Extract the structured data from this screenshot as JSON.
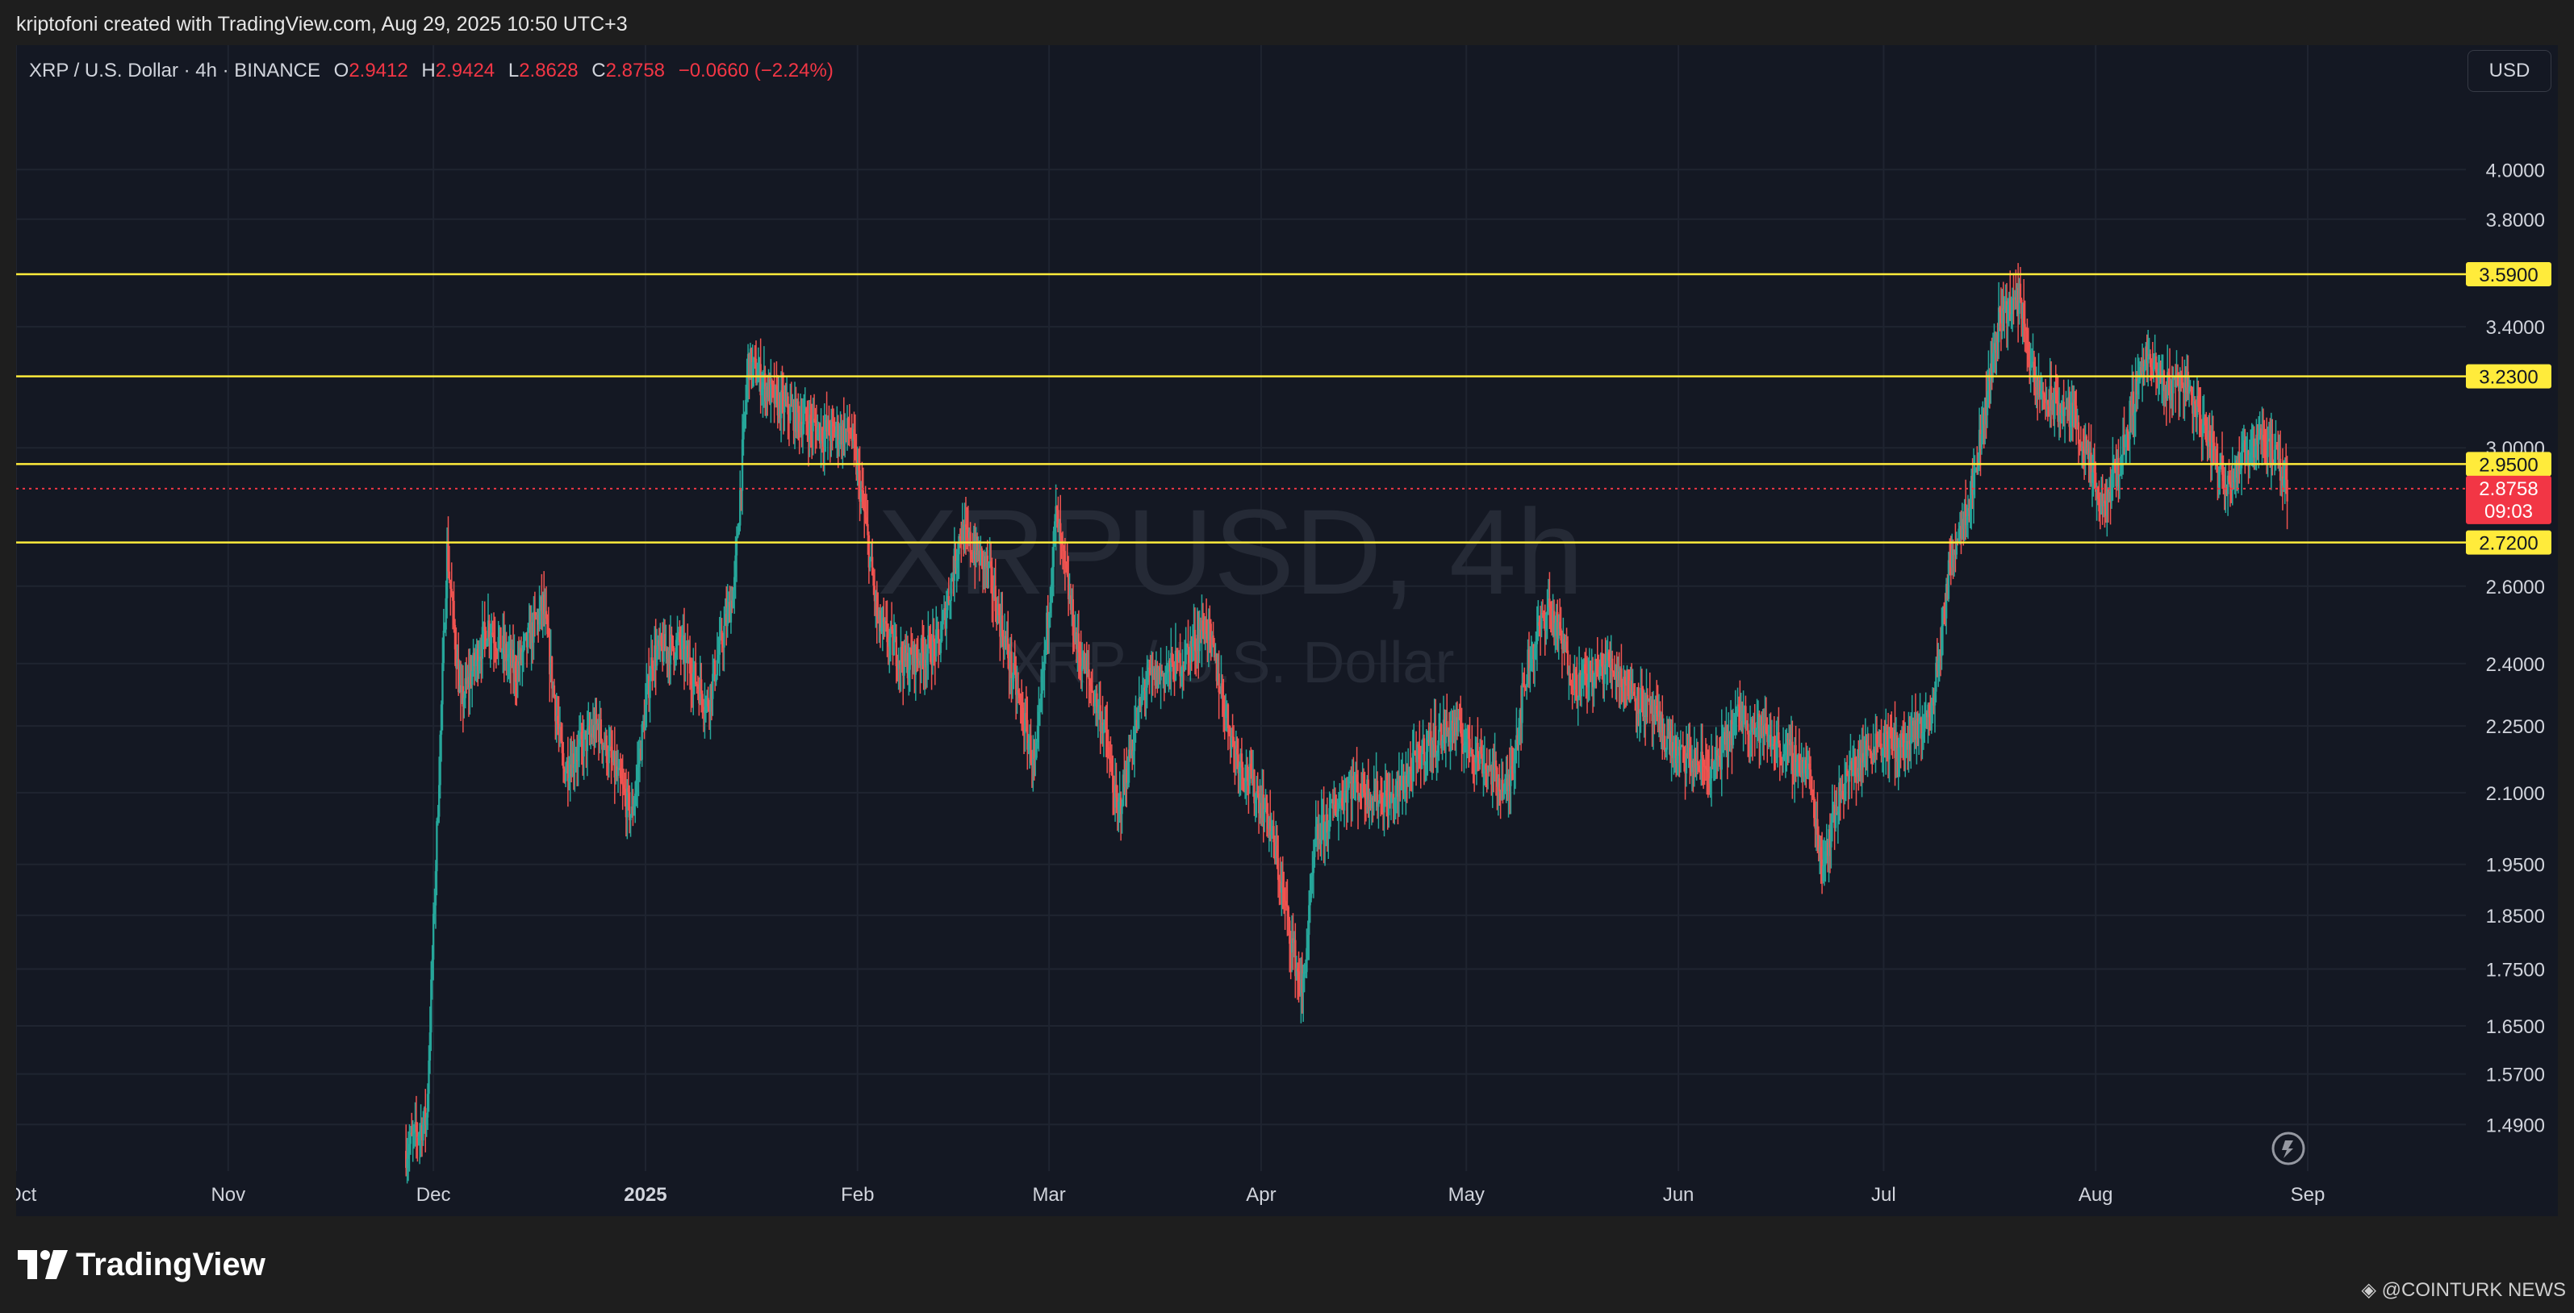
{
  "header": {
    "caption": "kriptofoni created with TradingView.com, Aug 29, 2025 10:50 UTC+3"
  },
  "legend": {
    "symbol": "XRP / U.S. Dollar · 4h · BINANCE",
    "open_label": "O",
    "open": "2.9412",
    "high_label": "H",
    "high": "2.9424",
    "low_label": "L",
    "low": "2.8628",
    "close_label": "C",
    "close": "2.8758",
    "change": "−0.0660 (−2.24%)"
  },
  "currency_button": "USD",
  "watermark": {
    "symbol": "XRPUSD, 4h",
    "name": "XRP / U.S. Dollar"
  },
  "footer": {
    "logo_text": "TradingView",
    "credit": "@COINTURK NEWS"
  },
  "colors": {
    "background": "#141823",
    "up": "#26a69a",
    "down": "#ef5350",
    "level_line": "#ffeb3b",
    "price_badge": "#f23645"
  },
  "chart_data": {
    "type": "candlestick",
    "symbol": "XRPUSD",
    "interval": "4h",
    "exchange": "BINANCE",
    "scale": "log",
    "ylim": [
      1.42,
      4.4
    ],
    "grid": true,
    "price_ticks": [
      "4.0000",
      "3.8000",
      "3.4000",
      "3.0000",
      "2.6000",
      "2.4000",
      "2.2500",
      "2.1000",
      "1.9500",
      "1.8500",
      "1.7500",
      "1.6500",
      "1.5700",
      "1.4900"
    ],
    "time_ticks": [
      {
        "label": "Oct",
        "date": "2024-10-01",
        "bold": false
      },
      {
        "label": "Nov",
        "date": "2024-11-01",
        "bold": false
      },
      {
        "label": "Dec",
        "date": "2024-12-01",
        "bold": false
      },
      {
        "label": "2025",
        "date": "2025-01-01",
        "bold": true
      },
      {
        "label": "Feb",
        "date": "2025-02-01",
        "bold": false
      },
      {
        "label": "Mar",
        "date": "2025-03-01",
        "bold": false
      },
      {
        "label": "Apr",
        "date": "2025-04-01",
        "bold": false
      },
      {
        "label": "May",
        "date": "2025-05-01",
        "bold": false
      },
      {
        "label": "Jun",
        "date": "2025-06-01",
        "bold": false
      },
      {
        "label": "Jul",
        "date": "2025-07-01",
        "bold": false
      },
      {
        "label": "Aug",
        "date": "2025-08-01",
        "bold": false
      },
      {
        "label": "Sep",
        "date": "2025-09-01",
        "bold": false
      }
    ],
    "horizontal_levels": [
      {
        "value": 3.59,
        "label": "3.5900"
      },
      {
        "value": 3.23,
        "label": "3.2300"
      },
      {
        "value": 2.95,
        "label": "2.9500"
      },
      {
        "value": 2.72,
        "label": "2.7200"
      }
    ],
    "last_price": {
      "value": 2.8758,
      "label": "2.8758",
      "countdown": "09:03"
    },
    "trend_points": [
      {
        "date": "2024-11-27",
        "price": 1.45
      },
      {
        "date": "2024-11-30",
        "price": 1.5
      },
      {
        "date": "2024-12-03",
        "price": 2.7
      },
      {
        "date": "2024-12-05",
        "price": 2.3
      },
      {
        "date": "2024-12-09",
        "price": 2.5
      },
      {
        "date": "2024-12-13",
        "price": 2.38
      },
      {
        "date": "2024-12-17",
        "price": 2.55
      },
      {
        "date": "2024-12-20",
        "price": 2.15
      },
      {
        "date": "2024-12-25",
        "price": 2.25
      },
      {
        "date": "2024-12-30",
        "price": 2.05
      },
      {
        "date": "2025-01-02",
        "price": 2.42
      },
      {
        "date": "2025-01-06",
        "price": 2.45
      },
      {
        "date": "2025-01-10",
        "price": 2.3
      },
      {
        "date": "2025-01-14",
        "price": 2.6
      },
      {
        "date": "2025-01-16",
        "price": 3.28
      },
      {
        "date": "2025-01-20",
        "price": 3.15
      },
      {
        "date": "2025-01-23",
        "price": 3.1
      },
      {
        "date": "2025-01-27",
        "price": 3.05
      },
      {
        "date": "2025-01-31",
        "price": 3.05
      },
      {
        "date": "2025-02-02",
        "price": 2.8
      },
      {
        "date": "2025-02-04",
        "price": 2.5
      },
      {
        "date": "2025-02-08",
        "price": 2.4
      },
      {
        "date": "2025-02-13",
        "price": 2.45
      },
      {
        "date": "2025-02-16",
        "price": 2.75
      },
      {
        "date": "2025-02-20",
        "price": 2.65
      },
      {
        "date": "2025-02-24",
        "price": 2.35
      },
      {
        "date": "2025-02-27",
        "price": 2.15
      },
      {
        "date": "2025-03-02",
        "price": 2.8
      },
      {
        "date": "2025-03-05",
        "price": 2.45
      },
      {
        "date": "2025-03-09",
        "price": 2.25
      },
      {
        "date": "2025-03-11",
        "price": 2.05
      },
      {
        "date": "2025-03-15",
        "price": 2.35
      },
      {
        "date": "2025-03-20",
        "price": 2.4
      },
      {
        "date": "2025-03-24",
        "price": 2.5
      },
      {
        "date": "2025-03-28",
        "price": 2.2
      },
      {
        "date": "2025-04-02",
        "price": 2.05
      },
      {
        "date": "2025-04-07",
        "price": 1.7
      },
      {
        "date": "2025-04-09",
        "price": 2.0
      },
      {
        "date": "2025-04-14",
        "price": 2.12
      },
      {
        "date": "2025-04-20",
        "price": 2.08
      },
      {
        "date": "2025-04-25",
        "price": 2.2
      },
      {
        "date": "2025-04-29",
        "price": 2.25
      },
      {
        "date": "2025-05-02",
        "price": 2.2
      },
      {
        "date": "2025-05-07",
        "price": 2.1
      },
      {
        "date": "2025-05-10",
        "price": 2.4
      },
      {
        "date": "2025-05-13",
        "price": 2.55
      },
      {
        "date": "2025-05-17",
        "price": 2.35
      },
      {
        "date": "2025-05-22",
        "price": 2.4
      },
      {
        "date": "2025-05-27",
        "price": 2.3
      },
      {
        "date": "2025-06-01",
        "price": 2.18
      },
      {
        "date": "2025-06-06",
        "price": 2.15
      },
      {
        "date": "2025-06-10",
        "price": 2.28
      },
      {
        "date": "2025-06-16",
        "price": 2.2
      },
      {
        "date": "2025-06-20",
        "price": 2.15
      },
      {
        "date": "2025-06-22",
        "price": 1.95
      },
      {
        "date": "2025-06-25",
        "price": 2.12
      },
      {
        "date": "2025-06-30",
        "price": 2.22
      },
      {
        "date": "2025-07-04",
        "price": 2.2
      },
      {
        "date": "2025-07-08",
        "price": 2.28
      },
      {
        "date": "2025-07-11",
        "price": 2.7
      },
      {
        "date": "2025-07-14",
        "price": 2.88
      },
      {
        "date": "2025-07-18",
        "price": 3.45
      },
      {
        "date": "2025-07-21",
        "price": 3.5
      },
      {
        "date": "2025-07-23",
        "price": 3.2
      },
      {
        "date": "2025-07-25",
        "price": 3.15
      },
      {
        "date": "2025-07-29",
        "price": 3.1
      },
      {
        "date": "2025-08-02",
        "price": 2.8
      },
      {
        "date": "2025-08-05",
        "price": 3.0
      },
      {
        "date": "2025-08-08",
        "price": 3.3
      },
      {
        "date": "2025-08-11",
        "price": 3.2
      },
      {
        "date": "2025-08-14",
        "price": 3.22
      },
      {
        "date": "2025-08-17",
        "price": 3.05
      },
      {
        "date": "2025-08-20",
        "price": 2.9
      },
      {
        "date": "2025-08-22",
        "price": 2.95
      },
      {
        "date": "2025-08-25",
        "price": 3.05
      },
      {
        "date": "2025-08-27",
        "price": 2.98
      },
      {
        "date": "2025-08-29",
        "price": 2.8758
      }
    ]
  }
}
